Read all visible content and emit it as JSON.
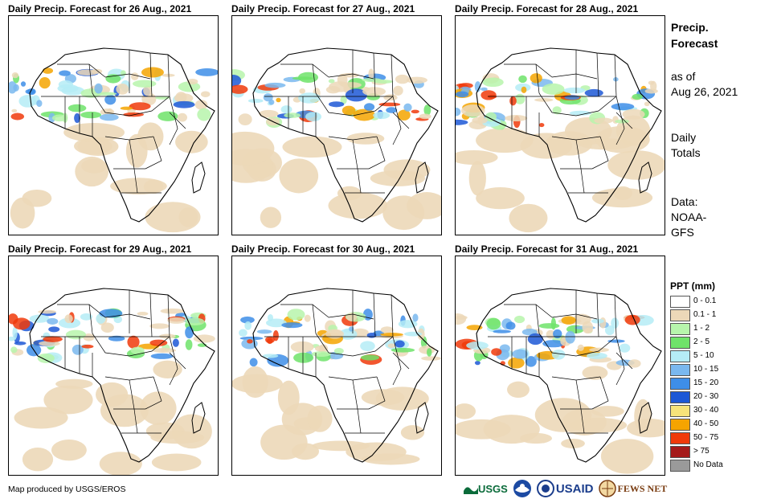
{
  "panels": [
    {
      "title": "Daily Precip. Forecast for 26 Aug., 2021"
    },
    {
      "title": "Daily Precip. Forecast for 27 Aug., 2021"
    },
    {
      "title": "Daily Precip. Forecast for 28 Aug., 2021"
    },
    {
      "title": "Daily Precip. Forecast for 29 Aug., 2021"
    },
    {
      "title": "Daily Precip. Forecast for 30 Aug., 2021"
    },
    {
      "title": "Daily Precip. Forecast for 31 Aug., 2021"
    }
  ],
  "sidebar": {
    "title_line1": "Precip.",
    "title_line2": "Forecast",
    "asof_line1": "as of",
    "asof_line2": "Aug 26, 2021",
    "totals_line1": "Daily",
    "totals_line2": "Totals",
    "data_line1": "Data:",
    "data_line2": "NOAA-",
    "data_line3": "GFS"
  },
  "legend": {
    "title": "PPT (mm)",
    "items": [
      {
        "label": "0 - 0.1",
        "color": "#ffffff"
      },
      {
        "label": "0.1 - 1",
        "color": "#ecd8b8"
      },
      {
        "label": "1 - 2",
        "color": "#b7f5ac"
      },
      {
        "label": "2 - 5",
        "color": "#6fe36a"
      },
      {
        "label": "5 - 10",
        "color": "#b5ecf6"
      },
      {
        "label": "10 - 15",
        "color": "#7ab8ef"
      },
      {
        "label": "15 - 20",
        "color": "#3e8ee8"
      },
      {
        "label": "20 - 30",
        "color": "#1d58d6"
      },
      {
        "label": "30 - 40",
        "color": "#f7e37a"
      },
      {
        "label": "40 - 50",
        "color": "#f5a400"
      },
      {
        "label": "50 - 75",
        "color": "#f03a0a"
      },
      {
        "label": "> 75",
        "color": "#a51a1a"
      },
      {
        "label": "No Data",
        "color": "#9a9a9a"
      }
    ]
  },
  "credit": "Map produced by USGS/EROS",
  "logos": {
    "usgs": "USGS",
    "noaa": "NOAA",
    "usaid": "USAID",
    "fewsnet": "FEWS NET"
  }
}
